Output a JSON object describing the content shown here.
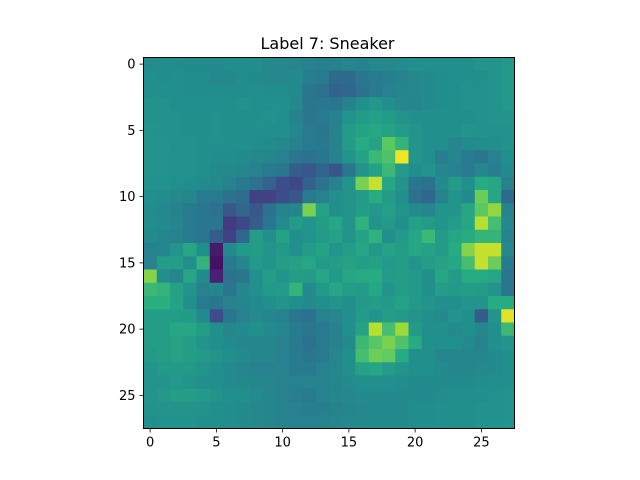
{
  "chart_data": {
    "type": "heatmap",
    "title": "Label 7: Sneaker",
    "colormap": "viridis",
    "rows": 28,
    "cols": 28,
    "xlim": [
      -0.5,
      27.5
    ],
    "ylim": [
      27.5,
      -0.5
    ],
    "xticks": [
      0,
      5,
      10,
      15,
      20,
      25
    ],
    "yticks": [
      0,
      5,
      10,
      15,
      20,
      25
    ],
    "xlabel": "",
    "ylabel": "",
    "grid": false,
    "vmin": 0,
    "vmax": 1,
    "z": [
      [
        0.48,
        0.49,
        0.49,
        0.48,
        0.48,
        0.48,
        0.49,
        0.49,
        0.49,
        0.47,
        0.47,
        0.46,
        0.44,
        0.43,
        0.44,
        0.46,
        0.45,
        0.47,
        0.47,
        0.48,
        0.5,
        0.5,
        0.5,
        0.5,
        0.5,
        0.52,
        0.52,
        0.53
      ],
      [
        0.5,
        0.49,
        0.5,
        0.49,
        0.49,
        0.47,
        0.47,
        0.49,
        0.48,
        0.47,
        0.47,
        0.48,
        0.43,
        0.42,
        0.35,
        0.35,
        0.4,
        0.42,
        0.43,
        0.45,
        0.47,
        0.48,
        0.49,
        0.5,
        0.5,
        0.5,
        0.52,
        0.53
      ],
      [
        0.5,
        0.5,
        0.5,
        0.49,
        0.49,
        0.49,
        0.49,
        0.49,
        0.5,
        0.49,
        0.49,
        0.48,
        0.4,
        0.38,
        0.32,
        0.34,
        0.38,
        0.42,
        0.44,
        0.46,
        0.47,
        0.48,
        0.49,
        0.5,
        0.51,
        0.51,
        0.52,
        0.53
      ],
      [
        0.51,
        0.51,
        0.5,
        0.5,
        0.5,
        0.5,
        0.5,
        0.51,
        0.5,
        0.5,
        0.5,
        0.47,
        0.4,
        0.41,
        0.4,
        0.45,
        0.5,
        0.53,
        0.5,
        0.47,
        0.46,
        0.48,
        0.49,
        0.5,
        0.51,
        0.51,
        0.52,
        0.53
      ],
      [
        0.51,
        0.51,
        0.51,
        0.5,
        0.5,
        0.51,
        0.5,
        0.5,
        0.5,
        0.51,
        0.5,
        0.45,
        0.4,
        0.42,
        0.44,
        0.52,
        0.55,
        0.57,
        0.55,
        0.52,
        0.5,
        0.5,
        0.5,
        0.5,
        0.5,
        0.51,
        0.52,
        0.52
      ],
      [
        0.52,
        0.51,
        0.51,
        0.5,
        0.5,
        0.51,
        0.5,
        0.5,
        0.5,
        0.5,
        0.5,
        0.46,
        0.42,
        0.4,
        0.44,
        0.55,
        0.58,
        0.6,
        0.58,
        0.55,
        0.52,
        0.5,
        0.5,
        0.5,
        0.52,
        0.51,
        0.51,
        0.51
      ],
      [
        0.52,
        0.52,
        0.51,
        0.51,
        0.5,
        0.5,
        0.5,
        0.5,
        0.49,
        0.48,
        0.47,
        0.44,
        0.42,
        0.41,
        0.45,
        0.55,
        0.62,
        0.58,
        0.75,
        0.66,
        0.52,
        0.5,
        0.5,
        0.46,
        0.48,
        0.49,
        0.5,
        0.51
      ],
      [
        0.52,
        0.52,
        0.51,
        0.51,
        0.5,
        0.49,
        0.49,
        0.48,
        0.47,
        0.46,
        0.44,
        0.4,
        0.38,
        0.4,
        0.45,
        0.52,
        0.58,
        0.68,
        0.72,
        0.98,
        0.52,
        0.5,
        0.43,
        0.46,
        0.42,
        0.4,
        0.44,
        0.5
      ],
      [
        0.52,
        0.52,
        0.51,
        0.51,
        0.5,
        0.48,
        0.47,
        0.46,
        0.44,
        0.42,
        0.4,
        0.3,
        0.28,
        0.33,
        0.27,
        0.4,
        0.52,
        0.58,
        0.68,
        0.55,
        0.5,
        0.52,
        0.46,
        0.44,
        0.42,
        0.46,
        0.43,
        0.48
      ],
      [
        0.51,
        0.51,
        0.5,
        0.49,
        0.48,
        0.47,
        0.45,
        0.42,
        0.38,
        0.32,
        0.24,
        0.22,
        0.31,
        0.38,
        0.44,
        0.52,
        0.8,
        0.92,
        0.6,
        0.52,
        0.4,
        0.38,
        0.48,
        0.55,
        0.5,
        0.62,
        0.6,
        0.45
      ],
      [
        0.5,
        0.49,
        0.47,
        0.46,
        0.42,
        0.42,
        0.38,
        0.36,
        0.2,
        0.2,
        0.24,
        0.27,
        0.42,
        0.44,
        0.5,
        0.52,
        0.55,
        0.62,
        0.55,
        0.5,
        0.38,
        0.34,
        0.45,
        0.52,
        0.48,
        0.78,
        0.6,
        0.35
      ],
      [
        0.49,
        0.47,
        0.45,
        0.42,
        0.4,
        0.38,
        0.28,
        0.34,
        0.28,
        0.38,
        0.45,
        0.46,
        0.8,
        0.58,
        0.5,
        0.52,
        0.56,
        0.53,
        0.57,
        0.52,
        0.48,
        0.46,
        0.52,
        0.52,
        0.6,
        0.75,
        0.84,
        0.45
      ],
      [
        0.49,
        0.48,
        0.46,
        0.42,
        0.4,
        0.4,
        0.18,
        0.22,
        0.3,
        0.4,
        0.48,
        0.55,
        0.52,
        0.56,
        0.6,
        0.52,
        0.65,
        0.52,
        0.54,
        0.5,
        0.57,
        0.55,
        0.52,
        0.55,
        0.6,
        0.9,
        0.7,
        0.47
      ],
      [
        0.48,
        0.46,
        0.44,
        0.42,
        0.4,
        0.3,
        0.2,
        0.34,
        0.56,
        0.5,
        0.58,
        0.5,
        0.52,
        0.55,
        0.58,
        0.52,
        0.58,
        0.65,
        0.5,
        0.54,
        0.6,
        0.68,
        0.55,
        0.6,
        0.62,
        0.66,
        0.66,
        0.45
      ],
      [
        0.44,
        0.46,
        0.52,
        0.6,
        0.5,
        0.08,
        0.48,
        0.54,
        0.56,
        0.52,
        0.54,
        0.5,
        0.55,
        0.58,
        0.52,
        0.56,
        0.6,
        0.53,
        0.58,
        0.56,
        0.6,
        0.58,
        0.55,
        0.62,
        0.82,
        0.92,
        0.92,
        0.47
      ],
      [
        0.44,
        0.56,
        0.56,
        0.5,
        0.66,
        0.05,
        0.42,
        0.46,
        0.54,
        0.52,
        0.56,
        0.58,
        0.6,
        0.54,
        0.56,
        0.58,
        0.56,
        0.58,
        0.54,
        0.56,
        0.52,
        0.56,
        0.58,
        0.6,
        0.7,
        0.92,
        0.78,
        0.42
      ],
      [
        0.82,
        0.5,
        0.46,
        0.6,
        0.48,
        0.1,
        0.38,
        0.4,
        0.5,
        0.56,
        0.52,
        0.56,
        0.55,
        0.6,
        0.54,
        0.6,
        0.62,
        0.62,
        0.55,
        0.56,
        0.54,
        0.5,
        0.6,
        0.55,
        0.62,
        0.62,
        0.6,
        0.4
      ],
      [
        0.68,
        0.66,
        0.58,
        0.52,
        0.44,
        0.46,
        0.4,
        0.46,
        0.5,
        0.54,
        0.55,
        0.66,
        0.48,
        0.54,
        0.6,
        0.56,
        0.55,
        0.6,
        0.52,
        0.56,
        0.54,
        0.5,
        0.56,
        0.54,
        0.56,
        0.55,
        0.52,
        0.4
      ],
      [
        0.64,
        0.64,
        0.58,
        0.5,
        0.42,
        0.4,
        0.44,
        0.46,
        0.48,
        0.5,
        0.52,
        0.5,
        0.48,
        0.5,
        0.52,
        0.5,
        0.54,
        0.56,
        0.54,
        0.58,
        0.54,
        0.52,
        0.5,
        0.5,
        0.52,
        0.52,
        0.62,
        0.62
      ],
      [
        0.56,
        0.56,
        0.56,
        0.54,
        0.48,
        0.24,
        0.4,
        0.44,
        0.48,
        0.46,
        0.44,
        0.4,
        0.38,
        0.44,
        0.46,
        0.5,
        0.55,
        0.52,
        0.56,
        0.54,
        0.52,
        0.5,
        0.48,
        0.52,
        0.5,
        0.3,
        0.52,
        0.96
      ],
      [
        0.56,
        0.56,
        0.6,
        0.6,
        0.56,
        0.5,
        0.46,
        0.48,
        0.5,
        0.48,
        0.46,
        0.42,
        0.4,
        0.42,
        0.44,
        0.5,
        0.58,
        0.9,
        0.7,
        0.86,
        0.55,
        0.5,
        0.5,
        0.48,
        0.5,
        0.46,
        0.5,
        0.68
      ],
      [
        0.56,
        0.56,
        0.58,
        0.56,
        0.52,
        0.5,
        0.48,
        0.46,
        0.46,
        0.46,
        0.44,
        0.42,
        0.38,
        0.42,
        0.44,
        0.48,
        0.68,
        0.74,
        0.8,
        0.72,
        0.62,
        0.5,
        0.5,
        0.5,
        0.48,
        0.45,
        0.5,
        0.52
      ],
      [
        0.54,
        0.56,
        0.58,
        0.56,
        0.54,
        0.52,
        0.5,
        0.48,
        0.46,
        0.46,
        0.44,
        0.42,
        0.4,
        0.42,
        0.46,
        0.5,
        0.7,
        0.78,
        0.76,
        0.62,
        0.5,
        0.5,
        0.46,
        0.46,
        0.46,
        0.46,
        0.48,
        0.5
      ],
      [
        0.52,
        0.54,
        0.54,
        0.54,
        0.52,
        0.5,
        0.48,
        0.46,
        0.44,
        0.44,
        0.44,
        0.42,
        0.42,
        0.44,
        0.46,
        0.5,
        0.58,
        0.6,
        0.55,
        0.52,
        0.5,
        0.5,
        0.48,
        0.46,
        0.46,
        0.47,
        0.48,
        0.5
      ],
      [
        0.52,
        0.52,
        0.53,
        0.52,
        0.5,
        0.5,
        0.48,
        0.47,
        0.46,
        0.46,
        0.45,
        0.44,
        0.44,
        0.45,
        0.46,
        0.48,
        0.5,
        0.5,
        0.5,
        0.49,
        0.48,
        0.48,
        0.48,
        0.48,
        0.48,
        0.49,
        0.5,
        0.5
      ],
      [
        0.52,
        0.53,
        0.56,
        0.56,
        0.54,
        0.52,
        0.5,
        0.5,
        0.48,
        0.46,
        0.44,
        0.43,
        0.42,
        0.44,
        0.46,
        0.47,
        0.48,
        0.48,
        0.48,
        0.48,
        0.48,
        0.48,
        0.49,
        0.5,
        0.5,
        0.5,
        0.51,
        0.52
      ],
      [
        0.51,
        0.52,
        0.52,
        0.52,
        0.51,
        0.5,
        0.49,
        0.48,
        0.47,
        0.46,
        0.45,
        0.44,
        0.43,
        0.43,
        0.45,
        0.46,
        0.47,
        0.48,
        0.48,
        0.48,
        0.49,
        0.49,
        0.5,
        0.5,
        0.5,
        0.51,
        0.51,
        0.52
      ],
      [
        0.5,
        0.51,
        0.51,
        0.51,
        0.5,
        0.5,
        0.49,
        0.48,
        0.47,
        0.46,
        0.45,
        0.44,
        0.44,
        0.45,
        0.46,
        0.47,
        0.47,
        0.48,
        0.48,
        0.48,
        0.49,
        0.49,
        0.5,
        0.5,
        0.5,
        0.51,
        0.51,
        0.52
      ]
    ]
  }
}
